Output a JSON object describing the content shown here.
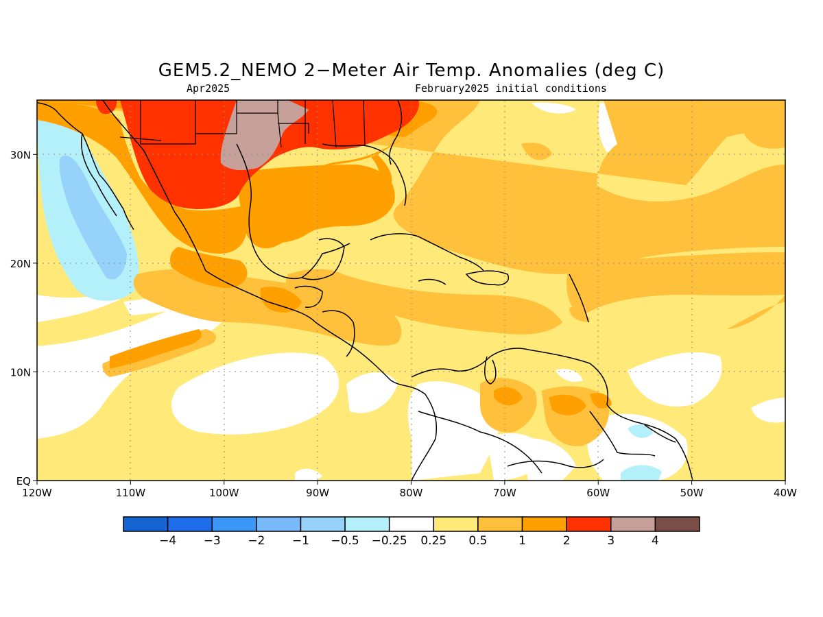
{
  "title": "GEM5.2_NEMO 2−Meter Air Temp. Anomalies (deg C)",
  "subtitle_left": "Apr2025",
  "subtitle_right": "February2025 initial conditions",
  "map": {
    "lon_range": [
      -120,
      -40
    ],
    "lat_range": [
      0,
      35
    ],
    "lon_ticks": [
      {
        "value": -120,
        "label": "120W"
      },
      {
        "value": -110,
        "label": "110W"
      },
      {
        "value": -100,
        "label": "100W"
      },
      {
        "value": -90,
        "label": "90W"
      },
      {
        "value": -80,
        "label": "80W"
      },
      {
        "value": -70,
        "label": "70W"
      },
      {
        "value": -60,
        "label": "60W"
      },
      {
        "value": -50,
        "label": "50W"
      },
      {
        "value": -40,
        "label": "40W"
      }
    ],
    "lat_ticks": [
      {
        "value": 0,
        "label": "EQ"
      },
      {
        "value": 10,
        "label": "10N"
      },
      {
        "value": 20,
        "label": "20N"
      },
      {
        "value": 30,
        "label": "30N"
      }
    ],
    "grid": true
  },
  "colorbar": {
    "colors": [
      "#1464d2",
      "#1e6eeb",
      "#3c96f5",
      "#78b9fa",
      "#96d2fa",
      "#b4f0fa",
      "#ffffff",
      "#ffe978",
      "#ffc03c",
      "#ffa000",
      "#ff3200",
      "#c8a09a",
      "#7a4e46"
    ],
    "labels": [
      "−4",
      "−3",
      "−2",
      "−1",
      "−0.5",
      "−0.25",
      "0.25",
      "0.5",
      "1",
      "2",
      "3",
      "4"
    ]
  }
}
